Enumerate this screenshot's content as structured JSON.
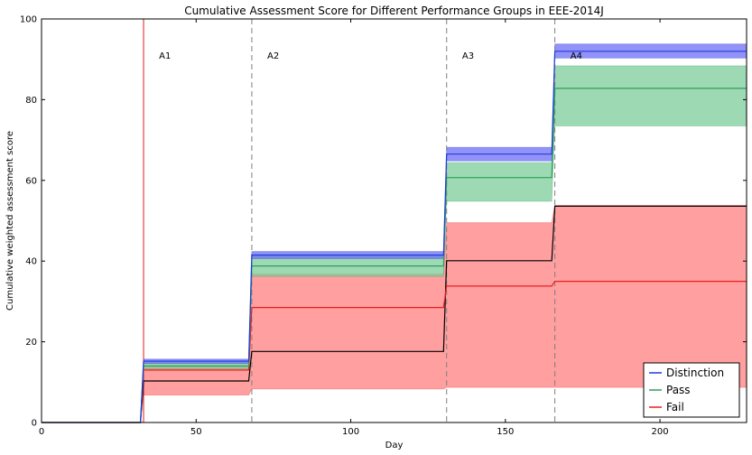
{
  "chart_data": {
    "type": "line",
    "title": "Cumulative Assessment Score for Different Performance Groups in EEE-2014J",
    "xlabel": "Day",
    "ylabel": "Cumulative weighted assessment score",
    "xlim": [
      0,
      228
    ],
    "ylim": [
      0,
      100
    ],
    "xticks": [
      0,
      50,
      100,
      150,
      200
    ],
    "yticks": [
      0,
      20,
      40,
      60,
      80,
      100
    ],
    "grid": false,
    "legend_position": "bottom-right",
    "annotations": [
      {
        "text": "A1",
        "x": 38,
        "y": 91
      },
      {
        "text": "A2",
        "x": 73,
        "y": 91
      },
      {
        "text": "A3",
        "x": 136,
        "y": 91
      },
      {
        "text": "A4",
        "x": 171,
        "y": 91
      }
    ],
    "assessment_lines": [
      {
        "x": 33,
        "color": "#e41a1c",
        "style": "solid"
      },
      {
        "x": 68,
        "color": "#808080",
        "style": "dashed"
      },
      {
        "x": 131,
        "color": "#808080",
        "style": "dashed"
      },
      {
        "x": 166,
        "color": "#808080",
        "style": "dashed"
      }
    ],
    "series": [
      {
        "name": "Distinction",
        "color": "#1f3fd9",
        "fill": "#6d6df5",
        "x": [
          0,
          32,
          33,
          67,
          68,
          130,
          131,
          165,
          166,
          228
        ],
        "y": [
          0,
          0,
          15.2,
          15.2,
          41.5,
          41.5,
          66.5,
          66.5,
          92,
          92
        ],
        "lower": [
          0,
          0,
          14.6,
          14.6,
          40.6,
          40.6,
          64.8,
          64.8,
          90.3,
          90.3
        ],
        "upper": [
          0,
          0,
          15.7,
          15.7,
          42.4,
          42.4,
          68.2,
          68.2,
          93.8,
          93.8
        ]
      },
      {
        "name": "Pass",
        "color": "#2ca05a",
        "fill": "#7ccc9a",
        "x": [
          0,
          32,
          33,
          67,
          68,
          130,
          131,
          165,
          166,
          228
        ],
        "y": [
          0,
          0,
          14,
          14,
          38.8,
          38.8,
          60.7,
          60.7,
          82.8,
          82.8
        ],
        "lower": [
          0,
          0,
          13.3,
          13.3,
          36.2,
          36.2,
          54.8,
          54.8,
          73.5,
          73.5
        ],
        "upper": [
          0,
          0,
          14.8,
          14.8,
          41.3,
          41.3,
          64.4,
          64.4,
          88.4,
          88.4
        ]
      },
      {
        "name": "Fail",
        "color": "#e8201d",
        "fill": "#ff7f7f",
        "x": [
          0,
          32,
          33,
          67,
          68,
          130,
          131,
          165,
          166,
          228
        ],
        "y": [
          0,
          0,
          13,
          13,
          28.5,
          28.5,
          33.8,
          33.8,
          35,
          35
        ],
        "lower": [
          0,
          0,
          6.8,
          6.8,
          8.3,
          8.3,
          8.7,
          8.7,
          8.7,
          8.7
        ],
        "upper": [
          0,
          0,
          14,
          14,
          36.8,
          36.8,
          49.5,
          49.5,
          53.8,
          53.8
        ]
      }
    ],
    "extra_lines": [
      {
        "color": "#000000",
        "x": [
          0,
          32,
          33,
          67,
          68,
          130,
          131,
          165,
          166,
          228
        ],
        "y": [
          0,
          0,
          10.3,
          10.3,
          17.6,
          17.6,
          40.1,
          40.1,
          53.6,
          53.6
        ]
      }
    ]
  }
}
